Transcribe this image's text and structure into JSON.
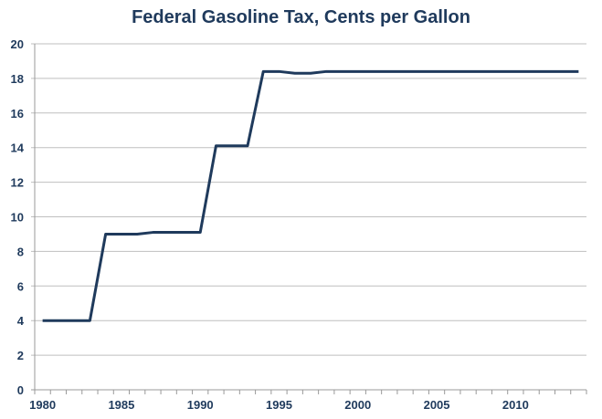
{
  "chart_data": {
    "type": "line",
    "title": "Federal Gasoline Tax, Cents per Gallon",
    "xlabel": "",
    "ylabel": "",
    "x": [
      1980,
      1981,
      1982,
      1983,
      1984,
      1985,
      1986,
      1987,
      1988,
      1989,
      1990,
      1991,
      1992,
      1993,
      1994,
      1995,
      1996,
      1997,
      1998,
      1999,
      2000,
      2001,
      2002,
      2003,
      2004,
      2005,
      2006,
      2007,
      2008,
      2009,
      2010,
      2011,
      2012,
      2013,
      2014
    ],
    "series": [
      {
        "values": [
          4,
          4,
          4,
          4,
          9,
          9,
          9,
          9.1,
          9.1,
          9.1,
          9.1,
          14.1,
          14.1,
          14.1,
          18.4,
          18.4,
          18.3,
          18.3,
          18.4,
          18.4,
          18.4,
          18.4,
          18.4,
          18.4,
          18.4,
          18.4,
          18.4,
          18.4,
          18.4,
          18.4,
          18.4,
          18.4,
          18.4,
          18.4,
          18.4
        ]
      }
    ],
    "ylim": [
      0,
      20
    ],
    "yticks": [
      0,
      2,
      4,
      6,
      8,
      10,
      12,
      14,
      16,
      18,
      20
    ],
    "xtick_labels": [
      "1980",
      "1985",
      "1990",
      "1995",
      "2000",
      "2005",
      "2010"
    ],
    "grid": true,
    "legend": "none",
    "line_color": "#1f3a5c",
    "grid_color": "#bfbfbf"
  }
}
